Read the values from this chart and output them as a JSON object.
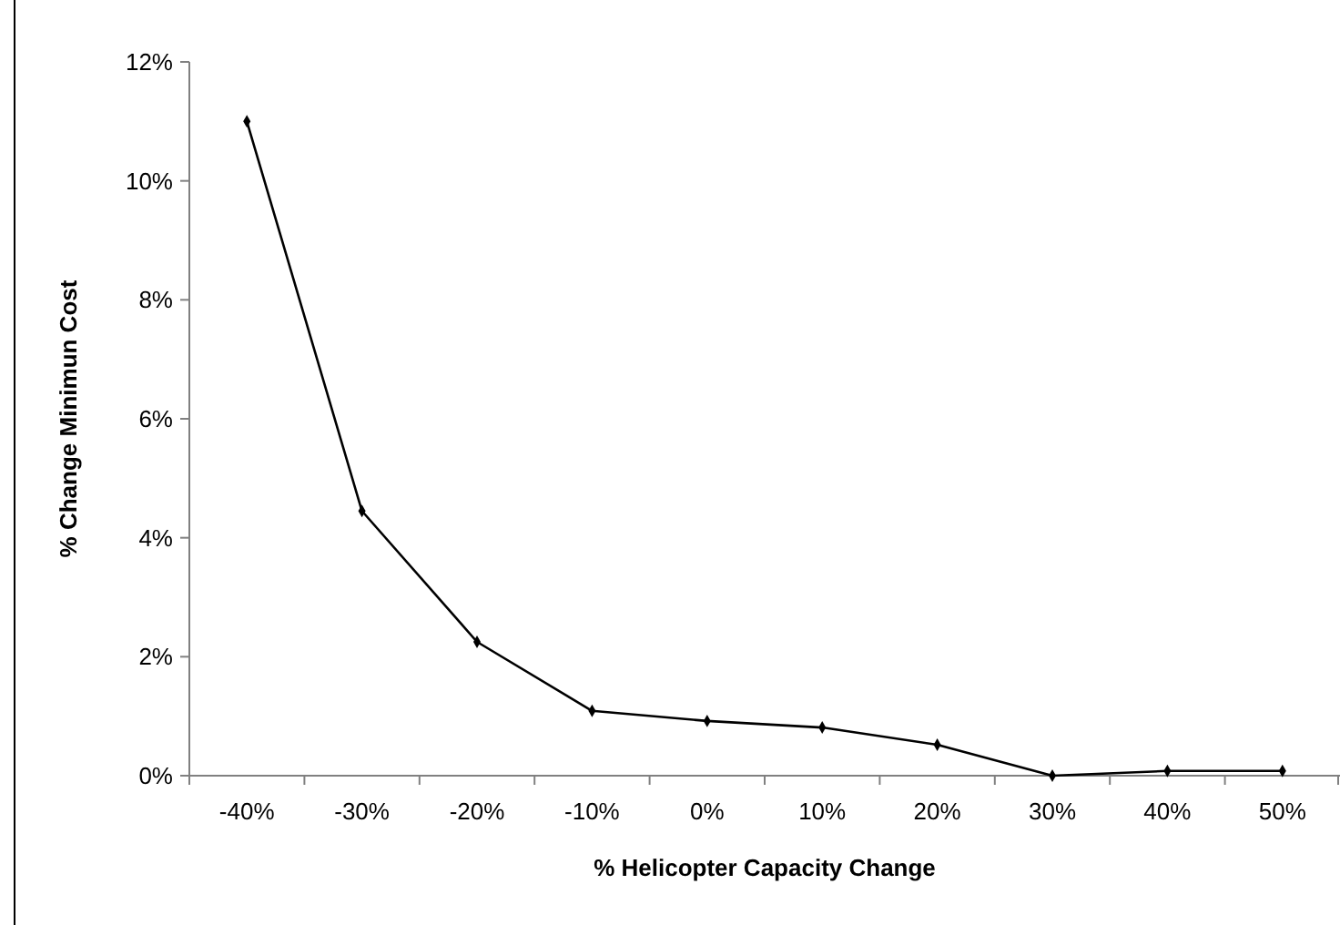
{
  "chart_data": {
    "type": "line",
    "xlabel": "% Helicopter Capacity Change",
    "ylabel": "% Change Minimun Cost",
    "categories": [
      "-40%",
      "-30%",
      "-20%",
      "-10%",
      "0%",
      "10%",
      "20%",
      "30%",
      "40%",
      "50%"
    ],
    "series": [
      {
        "color": "#000000",
        "values": [
          11.0,
          4.45,
          2.25,
          1.09,
          0.92,
          0.81,
          0.52,
          0,
          0.08,
          0.08
        ]
      }
    ],
    "ylim": [
      0,
      12
    ],
    "yticks": [
      {
        "value": 0,
        "label": "0%"
      },
      {
        "value": 2,
        "label": "2%"
      },
      {
        "value": 4,
        "label": "4%"
      },
      {
        "value": 6,
        "label": "6%"
      },
      {
        "value": 8,
        "label": "8%"
      },
      {
        "value": 10,
        "label": "10%"
      },
      {
        "value": 12,
        "label": "12%"
      }
    ],
    "grid": false,
    "marker": "diamond",
    "line_style": "solid"
  }
}
